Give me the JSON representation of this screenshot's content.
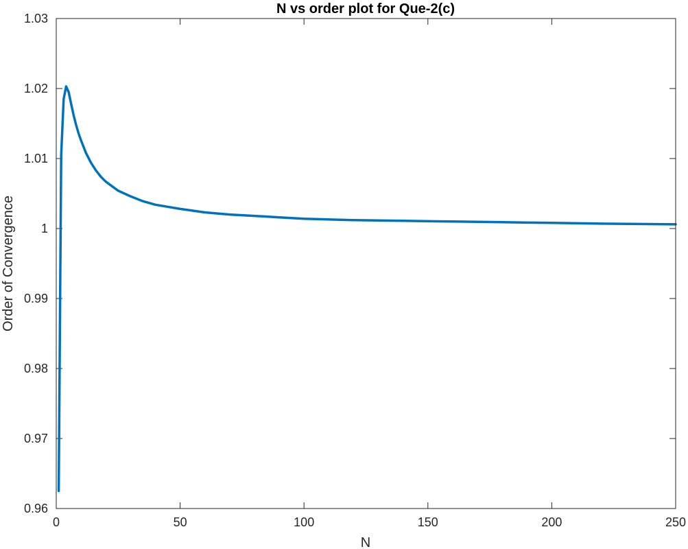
{
  "chart_data": {
    "type": "line",
    "title": "N vs order plot for Que-2(c)",
    "xlabel": "N",
    "ylabel": "Order of Convergence",
    "xlim": [
      0,
      250
    ],
    "ylim": [
      0.96,
      1.03
    ],
    "xticks": [
      0,
      50,
      100,
      150,
      200,
      250
    ],
    "xtick_labels": [
      "0",
      "50",
      "100",
      "150",
      "200",
      "250"
    ],
    "yticks": [
      0.96,
      0.97,
      0.98,
      0.99,
      1.0,
      1.01,
      1.02,
      1.03
    ],
    "ytick_labels": [
      "0.96",
      "0.97",
      "0.98",
      "0.99",
      "1",
      "1.01",
      "1.02",
      "1.03"
    ],
    "grid": false,
    "series": [
      {
        "color": "#0072BD",
        "x": [
          1,
          2,
          3,
          4,
          5,
          6,
          7,
          8,
          9,
          10,
          12,
          14,
          16,
          18,
          20,
          25,
          30,
          35,
          40,
          50,
          60,
          70,
          80,
          90,
          100,
          120,
          140,
          160,
          180,
          200,
          220,
          250
        ],
        "y": [
          0.9625,
          1.0105,
          1.0185,
          1.0203,
          1.0195,
          1.0178,
          1.0162,
          1.0148,
          1.0136,
          1.0126,
          1.0108,
          1.0094,
          1.0083,
          1.0074,
          1.0067,
          1.0054,
          1.0046,
          1.0039,
          1.0034,
          1.0028,
          1.0023,
          1.002,
          1.0018,
          1.0016,
          1.0014,
          1.0012,
          1.0011,
          1.001,
          1.0009,
          1.0008,
          1.0007,
          1.0006
        ]
      }
    ]
  }
}
